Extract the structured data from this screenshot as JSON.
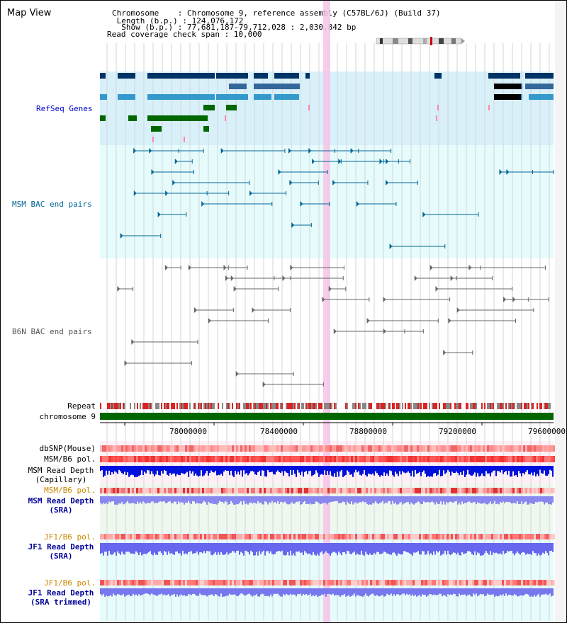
{
  "view": {
    "title": "Map View",
    "chromosome": "Chromosome    : Chromosome 9, reference assembly (C57BL/6J) (Build 37)",
    "length": " Length (b.p.) : 124,076,172",
    "show": "  Show (b.p.) : 77,681,187-79,712,028 : 2,030,842 bp",
    "coverage": "Read coverage check span : 10,000"
  },
  "tracks": {
    "refseq": "RefSeq Genes",
    "msm_bac": "MSM BAC end pairs",
    "b6n_bac": "B6N BAC end pairs",
    "repeat": "Repeat",
    "chromosome": "chromosome 9",
    "dbsnp": "dbSNP(Mouse)",
    "msm_b6_pol": "MSM/B6 pol.",
    "msm_depth_1": "MSM Read Depth",
    "msm_depth_2": "(Capillary)",
    "msm_b6_pol_sra": "MSM/B6 pol.",
    "msm_sra_1": "MSM Read Depth",
    "msm_sra_2": "(SRA)",
    "jf1_pol": "JF1/B6 pol.",
    "jf1_depth_1": "JF1 Read Depth",
    "jf1_depth_2": "(SRA)",
    "jf1_pol_2": "JF1/B6 pol.",
    "jf1_trim_1": "JF1 Read Depth",
    "jf1_trim_2": "(SRA trimmed)"
  },
  "axis": {
    "ticks": [
      "78000000",
      "78400000",
      "78800000",
      "79200000",
      "79600000"
    ]
  },
  "colors": {
    "refseq_label": "#0000cc",
    "msm_label": "#006699",
    "pol_sra_label": "#cc8800",
    "depth_label": "#000099",
    "refseq_bg": "#d8f0fa",
    "bac_bg": "#e6fbfb",
    "highlight": "#f4c4e6",
    "chromosome_bar": "#006600"
  }
}
